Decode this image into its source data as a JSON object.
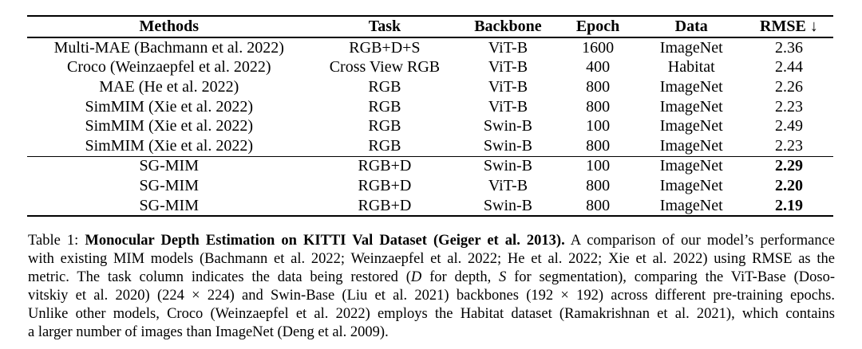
{
  "colors": {
    "background": "#ffffff",
    "text": "#000000",
    "rule": "#000000"
  },
  "table": {
    "columns": [
      {
        "key": "methods",
        "label": "Methods"
      },
      {
        "key": "task",
        "label": "Task"
      },
      {
        "key": "backbone",
        "label": "Backbone"
      },
      {
        "key": "epoch",
        "label": "Epoch"
      },
      {
        "key": "data",
        "label": "Data"
      },
      {
        "key": "rmse",
        "label": "RMSE ↓"
      }
    ],
    "rows": [
      {
        "cells": [
          "Multi-MAE (Bachmann et al. 2022)",
          "RGB+D+S",
          "ViT-B",
          "1600",
          "ImageNet",
          "2.36"
        ],
        "rmse_bold": false,
        "rule_above": false
      },
      {
        "cells": [
          "Croco (Weinzaepfel et al. 2022)",
          "Cross View RGB",
          "ViT-B",
          "400",
          "Habitat",
          "2.44"
        ],
        "rmse_bold": false,
        "rule_above": false
      },
      {
        "cells": [
          "MAE (He et al. 2022)",
          "RGB",
          "ViT-B",
          "800",
          "ImageNet",
          "2.26"
        ],
        "rmse_bold": false,
        "rule_above": false
      },
      {
        "cells": [
          "SimMIM (Xie et al. 2022)",
          "RGB",
          "ViT-B",
          "800",
          "ImageNet",
          "2.23"
        ],
        "rmse_bold": false,
        "rule_above": false
      },
      {
        "cells": [
          "SimMIM (Xie et al. 2022)",
          "RGB",
          "Swin-B",
          "100",
          "ImageNet",
          "2.49"
        ],
        "rmse_bold": false,
        "rule_above": false
      },
      {
        "cells": [
          "SimMIM (Xie et al. 2022)",
          "RGB",
          "Swin-B",
          "800",
          "ImageNet",
          "2.23"
        ],
        "rmse_bold": false,
        "rule_above": false
      },
      {
        "cells": [
          "SG-MIM",
          "RGB+D",
          "Swin-B",
          "100",
          "ImageNet",
          "2.29"
        ],
        "rmse_bold": true,
        "rule_above": true
      },
      {
        "cells": [
          "SG-MIM",
          "RGB+D",
          "ViT-B",
          "800",
          "ImageNet",
          "2.20"
        ],
        "rmse_bold": true,
        "rule_above": false
      },
      {
        "cells": [
          "SG-MIM",
          "RGB+D",
          "Swin-B",
          "800",
          "ImageNet",
          "2.19"
        ],
        "rmse_bold": true,
        "rule_above": false
      }
    ]
  },
  "caption": {
    "lines": [
      [
        {
          "t": "Table 1: ",
          "s": "n"
        },
        {
          "t": "Monocular Depth Estimation on KITTI Val Dataset (Geiger et al. 2013).",
          "s": "b"
        },
        {
          "t": " A comparison of our model’s performance",
          "s": "n"
        }
      ],
      [
        {
          "t": "with existing MIM models (Bachmann et al. 2022; Weinzaepfel et al. 2022; He et al. 2022; Xie et al. 2022) using RMSE as the",
          "s": "n"
        }
      ],
      [
        {
          "t": "metric. The task column indicates the data being restored (",
          "s": "n"
        },
        {
          "t": "D",
          "s": "i"
        },
        {
          "t": " for depth, ",
          "s": "n"
        },
        {
          "t": "S",
          "s": "i"
        },
        {
          "t": " for segmentation), comparing the ViT-Base (Doso-",
          "s": "n"
        }
      ],
      [
        {
          "t": "vitskiy et al. 2020) (224 × 224) and Swin-Base (Liu et al. 2021) backbones (192 × 192) across different pre-training epochs.",
          "s": "n"
        }
      ],
      [
        {
          "t": "Unlike other models, Croco (Weinzaepfel et al. 2022) employs the Habitat dataset (Ramakrishnan et al. 2021), which contains",
          "s": "n"
        }
      ],
      [
        {
          "t": "a larger number of images than ImageNet (Deng et al. 2009).",
          "s": "n"
        }
      ]
    ]
  }
}
